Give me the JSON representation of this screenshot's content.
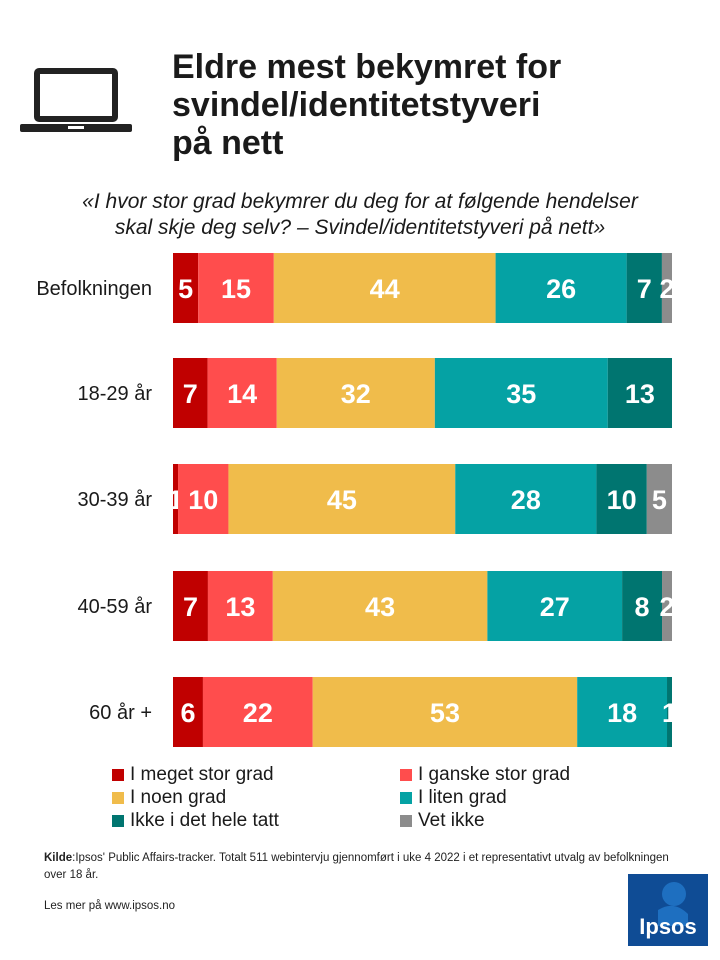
{
  "header": {
    "title_lines": [
      "Eldre mest bekymret for",
      "svindel/identitetstyveri",
      "på nett"
    ],
    "subtitle_lines": [
      "«I hvor stor grad bekymrer du deg for at følgende hendelser",
      "skal skje deg selv? – Svindel/identitetstyveri på nett»"
    ]
  },
  "chart_data": {
    "type": "bar",
    "orientation": "horizontal",
    "stacked": true,
    "unit": "percent",
    "categories": [
      "Befolkningen",
      "18-29 år",
      "30-39 år",
      "40-59 år",
      "60 år +"
    ],
    "series": [
      {
        "name": "I meget stor grad",
        "color": "#c00000",
        "values": [
          5,
          7,
          1,
          7,
          6
        ]
      },
      {
        "name": "I ganske stor grad",
        "color": "#ff4d4d",
        "values": [
          15,
          14,
          10,
          13,
          22
        ]
      },
      {
        "name": "I noen grad",
        "color": "#f0bc4b",
        "values": [
          44,
          32,
          45,
          43,
          53
        ]
      },
      {
        "name": "I liten grad",
        "color": "#05a2a4",
        "values": [
          26,
          35,
          28,
          27,
          18
        ]
      },
      {
        "name": "Ikke i det hele tatt",
        "color": "#007570",
        "values": [
          7,
          13,
          10,
          8,
          1
        ]
      },
      {
        "name": "Vet ikke",
        "color": "#8c8c8c",
        "values": [
          2,
          0,
          5,
          2,
          0
        ]
      }
    ],
    "legend_position": "bottom"
  },
  "footer": {
    "source_label": "Kilde",
    "source_text": ":Ipsos' Public Affairs-tracker.  Totalt 511 webintervju  gjennomført  i uke 4 2022 i et representativt  utvalg av befolkningen  over  18 år.",
    "read_more": "Les mer på www.ipsos.no",
    "logo_text": "Ipsos"
  }
}
